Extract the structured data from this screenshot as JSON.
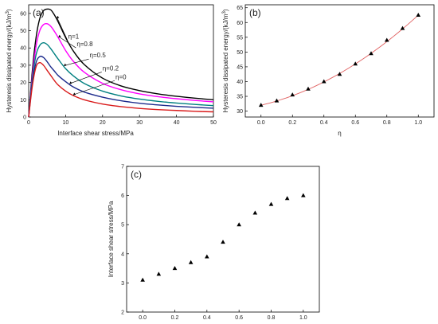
{
  "chart_data": [
    {
      "panel": "(a)",
      "type": "line",
      "xlabel": "Interface shear stress/MPa",
      "ylabel": "Hysteresis dissipated energy/(kJ/m",
      "ylabel_sup": "3",
      "ylabel_end": ")",
      "xlim": [
        0,
        50
      ],
      "ylim": [
        0,
        65
      ],
      "xticks": [
        0,
        10,
        20,
        30,
        40,
        50
      ],
      "yticks": [
        0,
        10,
        20,
        30,
        40,
        50,
        60
      ],
      "series": [
        {
          "name": "η=1",
          "color": "#000000",
          "x": [
            0,
            1,
            2,
            3,
            4,
            5,
            6,
            7,
            8,
            10,
            12,
            15,
            20,
            25,
            30,
            35,
            40,
            45,
            50
          ],
          "values": [
            0,
            27,
            46,
            57,
            61.5,
            62.5,
            62,
            59,
            55,
            46,
            38.5,
            30.5,
            22.5,
            18,
            15.3,
            13.4,
            12,
            10.9,
            10
          ]
        },
        {
          "name": "η=0.8",
          "color": "#ff00ff",
          "x": [
            0,
            1,
            2,
            3,
            4,
            5,
            6,
            7,
            8,
            10,
            12,
            15,
            20,
            25,
            30,
            35,
            40,
            45,
            50
          ],
          "values": [
            0,
            24,
            41,
            50,
            53.5,
            54,
            52.5,
            49.5,
            46,
            38.5,
            32.5,
            26,
            19.5,
            15.8,
            13.4,
            11.8,
            10.6,
            9.6,
            8.8
          ]
        },
        {
          "name": "η=0.5",
          "color": "#008080",
          "x": [
            0,
            1,
            2,
            3,
            4,
            5,
            6,
            7,
            8,
            10,
            12,
            15,
            20,
            25,
            30,
            35,
            40,
            45,
            50
          ],
          "values": [
            0,
            22,
            36,
            41.5,
            43,
            42,
            39.5,
            36.5,
            33.5,
            28,
            24,
            19.5,
            15,
            12.2,
            10.4,
            9.1,
            8.1,
            7.3,
            6.6
          ]
        },
        {
          "name": "η=0.2",
          "color": "#1c2a8c",
          "x": [
            0,
            1,
            2,
            3,
            4,
            5,
            6,
            7,
            8,
            10,
            12,
            15,
            20,
            25,
            30,
            35,
            40,
            45,
            50
          ],
          "values": [
            0,
            20,
            31.5,
            35,
            34.5,
            32,
            29,
            26.5,
            24,
            20.5,
            17.5,
            14.5,
            11.5,
            9.4,
            8,
            7,
            6.2,
            5.6,
            5.1
          ]
        },
        {
          "name": "η=0",
          "color": "#d91a1a",
          "x": [
            0,
            1,
            2,
            3,
            4,
            5,
            6,
            7,
            8,
            10,
            12,
            15,
            20,
            25,
            30,
            35,
            40,
            45,
            50
          ],
          "values": [
            0,
            18,
            29,
            31.5,
            30,
            27,
            24,
            21,
            18.5,
            15,
            12.5,
            10,
            7.5,
            6,
            5,
            4.3,
            3.8,
            3.3,
            3
          ]
        }
      ],
      "annotations": [
        {
          "text": "η=1",
          "series": 0,
          "x": 7.5,
          "label_x": 10.7,
          "label_y": 45.5
        },
        {
          "text": "η=0.8",
          "series": 1,
          "x": 8.0,
          "label_x": 13.0,
          "label_y": 41
        },
        {
          "text": "η=0.5",
          "series": 2,
          "x": 9.5,
          "label_x": 16.5,
          "label_y": 34.5
        },
        {
          "text": "η=0.2",
          "series": 3,
          "x": 11.0,
          "label_x": 20.0,
          "label_y": 27
        },
        {
          "text": "η=0",
          "series": 4,
          "x": 12.0,
          "label_x": 23.5,
          "label_y": 22
        }
      ]
    },
    {
      "panel": "(b)",
      "type": "scatter",
      "xlabel": "η",
      "ylabel": "Hysteresis dissipated energy/(kJ/m",
      "ylabel_sup": "3",
      "ylabel_end": ")",
      "xlim": [
        -0.1,
        1.1
      ],
      "ylim": [
        28,
        66
      ],
      "xticks": [
        0.0,
        0.2,
        0.4,
        0.6,
        0.8,
        1.0
      ],
      "yticks": [
        30,
        35,
        40,
        45,
        50,
        55,
        60,
        65
      ],
      "fit_color": "#e06060",
      "x": [
        0.0,
        0.1,
        0.2,
        0.3,
        0.4,
        0.5,
        0.6,
        0.7,
        0.8,
        0.9,
        1.0
      ],
      "values": [
        32,
        33.5,
        35.5,
        37.5,
        40,
        42.5,
        46,
        49.5,
        54,
        58,
        62.5
      ],
      "fit": {
        "a": 32.0,
        "b": 12.5,
        "c": 18.0
      }
    },
    {
      "panel": "(c)",
      "type": "scatter",
      "xlabel": "",
      "ylabel": "Interface shear stress/MPa",
      "xlim": [
        -0.1,
        1.1
      ],
      "ylim": [
        2,
        7
      ],
      "xticks": [
        0.0,
        0.2,
        0.4,
        0.6,
        0.8,
        1.0
      ],
      "yticks": [
        2,
        3,
        4,
        5,
        6,
        7
      ],
      "x": [
        0.0,
        0.1,
        0.2,
        0.3,
        0.4,
        0.5,
        0.6,
        0.7,
        0.8,
        0.9,
        1.0
      ],
      "values": [
        3.1,
        3.3,
        3.5,
        3.7,
        3.9,
        4.4,
        5.0,
        5.4,
        5.7,
        5.9,
        6.0
      ]
    }
  ]
}
